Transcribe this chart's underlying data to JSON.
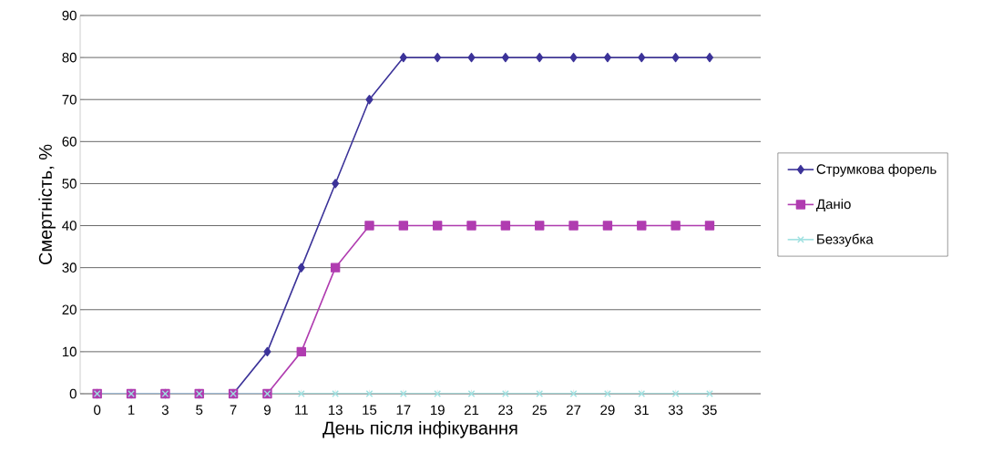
{
  "chart_data": {
    "type": "line",
    "xlabel": "День після інфікування",
    "ylabel": "Смертність, %",
    "categories": [
      "0",
      "1",
      "3",
      "5",
      "7",
      "9",
      "11",
      "13",
      "15",
      "17",
      "19",
      "21",
      "23",
      "25",
      "27",
      "29",
      "31",
      "33",
      "35"
    ],
    "series": [
      {
        "name": "Струмкова форель",
        "color": "#3c3399",
        "marker": "diamond",
        "values": [
          0,
          0,
          0,
          0,
          0,
          10,
          30,
          50,
          70,
          80,
          80,
          80,
          80,
          80,
          80,
          80,
          80,
          80,
          80
        ]
      },
      {
        "name": "Даніо",
        "color": "#b03cb0",
        "marker": "square",
        "values": [
          0,
          0,
          0,
          0,
          0,
          0,
          10,
          30,
          40,
          40,
          40,
          40,
          40,
          40,
          40,
          40,
          40,
          40,
          40
        ]
      },
      {
        "name": "Беззубка",
        "color": "#9ee0e0",
        "marker": "cross",
        "values": [
          0,
          0,
          0,
          0,
          0,
          0,
          0,
          0,
          0,
          0,
          0,
          0,
          0,
          0,
          0,
          0,
          0,
          0,
          0
        ]
      }
    ],
    "ylim": [
      0,
      90
    ],
    "yticks": [
      0,
      10,
      20,
      30,
      40,
      50,
      60,
      70,
      80,
      90
    ],
    "grid": "y",
    "legend": "right",
    "line_style": "solid"
  }
}
